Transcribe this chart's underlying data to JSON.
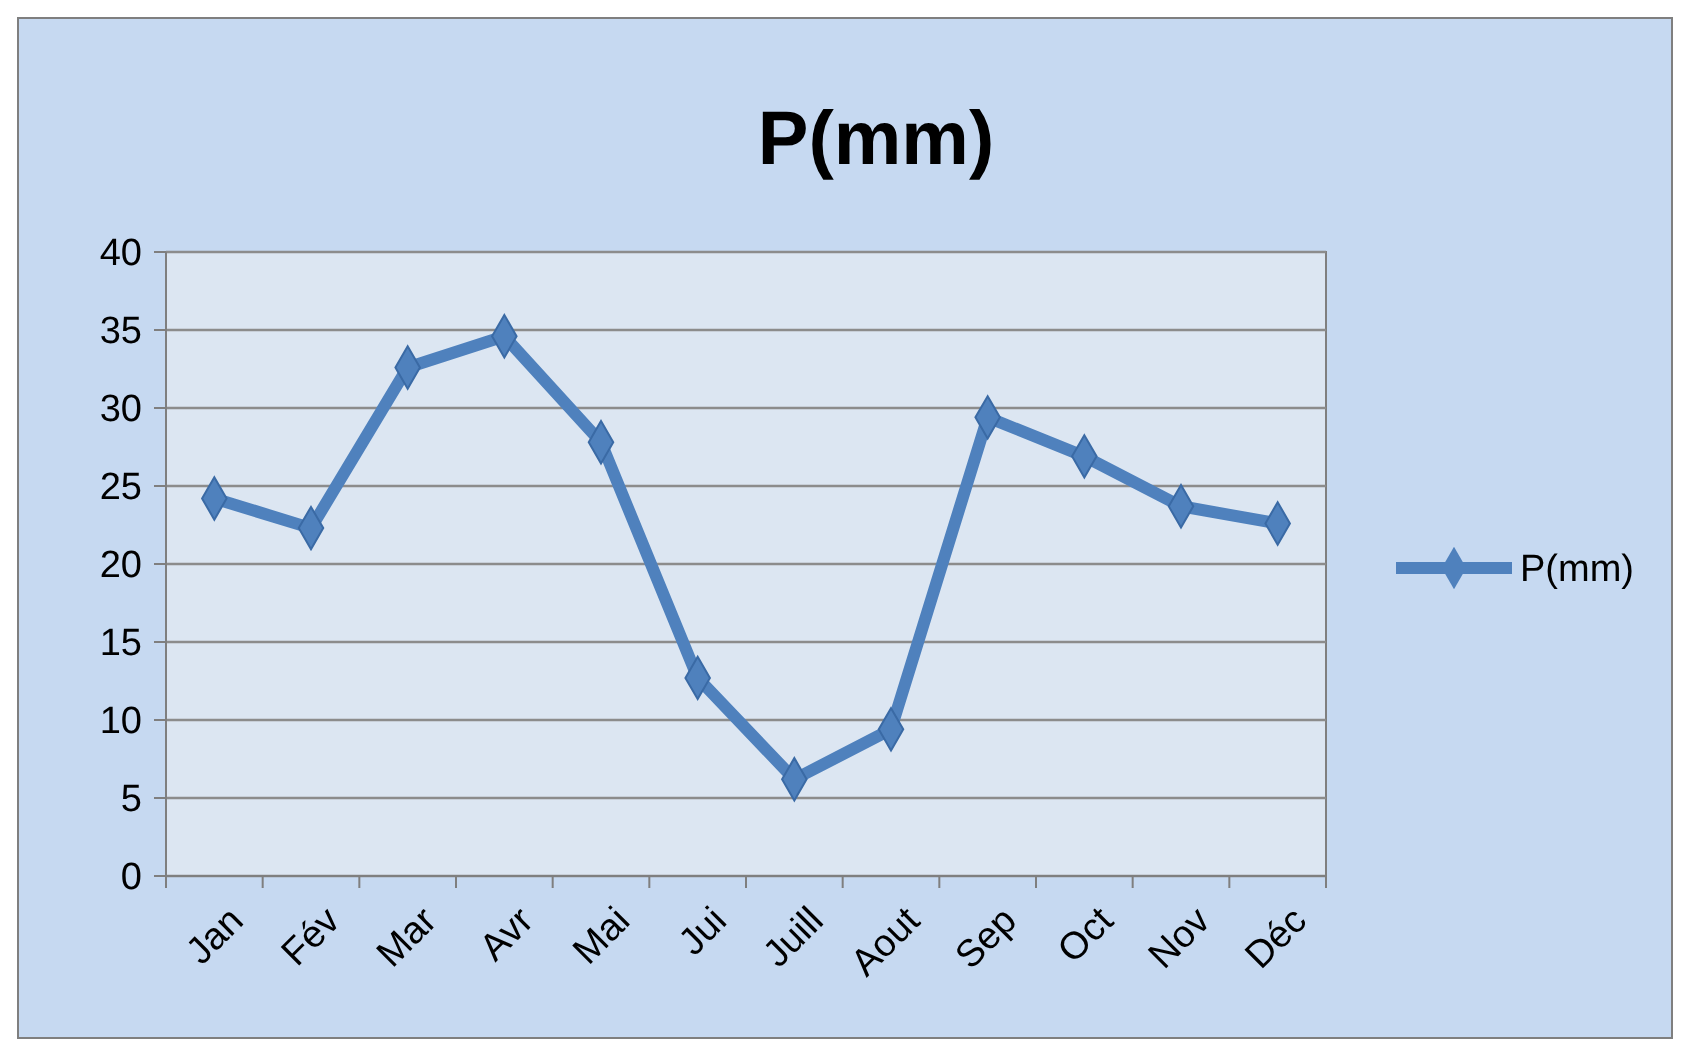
{
  "chart_data": {
    "type": "line",
    "title": "P(mm)",
    "categories": [
      "Jan",
      "Fév",
      "Mar",
      "Avr",
      "Mai",
      "Jui",
      "Juill",
      "Aout",
      "Sep",
      "Oct",
      "Nov",
      "Déc"
    ],
    "series": [
      {
        "name": "P(mm)",
        "color": "#4f81bd",
        "values": [
          24.2,
          22.3,
          32.6,
          34.6,
          27.8,
          12.7,
          6.2,
          9.4,
          29.4,
          26.9,
          23.7,
          22.6
        ]
      }
    ],
    "ylim": [
      0,
      40
    ],
    "yticks": [
      0,
      5,
      10,
      15,
      20,
      25,
      30,
      35,
      40
    ],
    "grid": "y",
    "legend": "right",
    "marker": "diamond",
    "line_style": "solid"
  }
}
